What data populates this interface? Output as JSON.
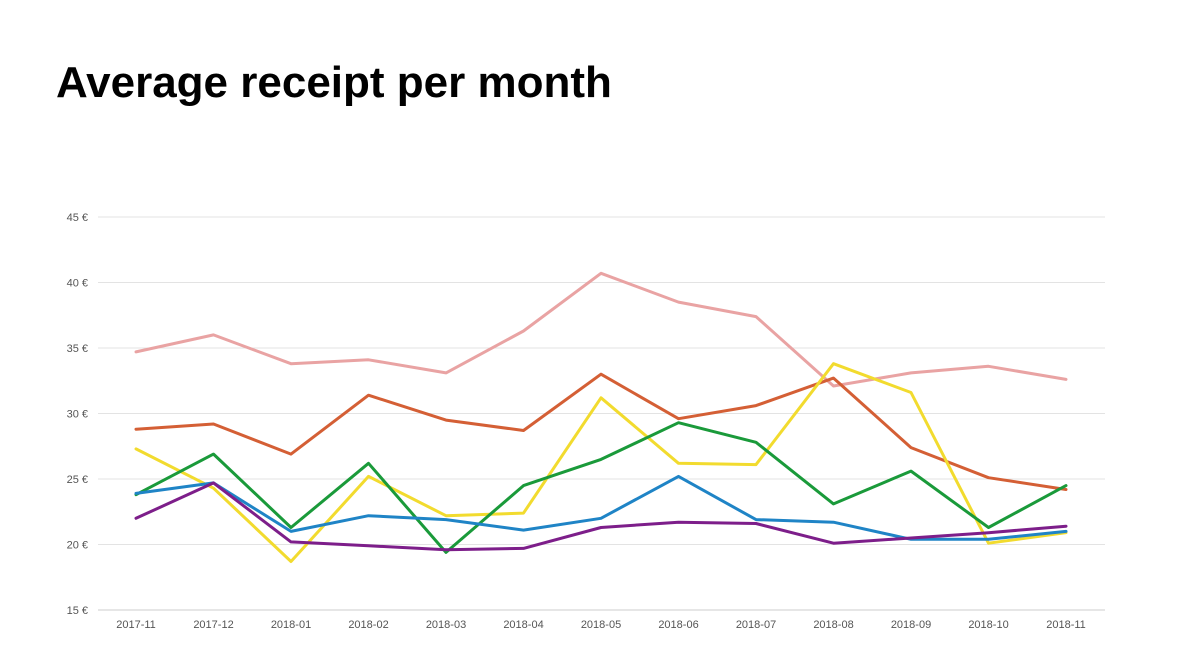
{
  "page": {
    "title": "Average receipt per month"
  },
  "chart_data": {
    "type": "line",
    "title": "Average receipt per month",
    "xlabel": "",
    "ylabel": "",
    "x": [
      "2017-11",
      "2017-12",
      "2018-01",
      "2018-02",
      "2018-03",
      "2018-04",
      "2018-05",
      "2018-06",
      "2018-07",
      "2018-08",
      "2018-09",
      "2018-10",
      "2018-11"
    ],
    "y_ticks": [
      15,
      20,
      25,
      30,
      35,
      40,
      45
    ],
    "y_tick_labels": [
      "15 €",
      "20 €",
      "25 €",
      "30 €",
      "35 €",
      "40 €",
      "45 €"
    ],
    "ylim": [
      15,
      45
    ],
    "grid": true,
    "legend": "none",
    "series": [
      {
        "color": "#e9a3a3",
        "values": [
          34.7,
          36.0,
          33.8,
          34.1,
          33.1,
          36.3,
          40.7,
          38.5,
          37.4,
          32.1,
          33.1,
          33.6,
          32.6
        ]
      },
      {
        "color": "#d45f35",
        "values": [
          28.8,
          29.2,
          26.9,
          31.4,
          29.5,
          28.7,
          33.0,
          29.6,
          30.6,
          32.7,
          27.4,
          25.1,
          24.2
        ]
      },
      {
        "color": "#f2db2e",
        "values": [
          27.3,
          24.3,
          18.7,
          25.2,
          22.2,
          22.4,
          31.2,
          26.2,
          26.1,
          33.8,
          31.6,
          20.1,
          20.9
        ]
      },
      {
        "color": "#1a9a3a",
        "values": [
          23.8,
          26.9,
          21.3,
          26.2,
          19.4,
          24.5,
          26.5,
          29.3,
          27.8,
          23.1,
          25.6,
          21.3,
          24.5
        ]
      },
      {
        "color": "#1f84c6",
        "values": [
          23.9,
          24.7,
          21.0,
          22.2,
          21.9,
          21.1,
          22.0,
          25.2,
          21.9,
          21.7,
          20.4,
          20.4,
          21.0
        ]
      },
      {
        "color": "#7d1e8a",
        "values": [
          22.0,
          24.7,
          20.2,
          19.9,
          19.6,
          19.7,
          21.3,
          21.7,
          21.6,
          20.1,
          20.5,
          20.9,
          21.4
        ]
      }
    ]
  }
}
